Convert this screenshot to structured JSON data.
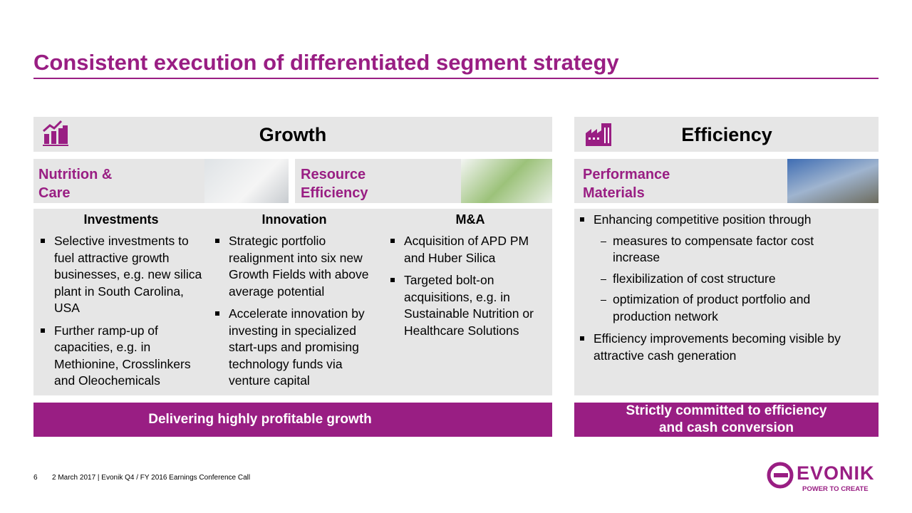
{
  "title": "Consistent execution of differentiated segment strategy",
  "growth": {
    "heading": "Growth",
    "segments": [
      "Nutrition & Care",
      "Resource Efficiency"
    ],
    "columns": [
      {
        "heading": "Investments",
        "bullets": [
          "Selective investments to fuel attractive growth businesses, e.g. new silica plant in South Carolina, USA",
          "Further ramp-up of capacities, e.g. in Methionine, Crosslinkers and Oleochemicals"
        ]
      },
      {
        "heading": "Innovation",
        "bullets": [
          "Strategic portfolio realignment into six new Growth Fields with above average potential",
          "Accelerate innovation by investing in specialized start-ups and promising technology funds via venture capital"
        ]
      },
      {
        "heading": "M&A",
        "bullets": [
          "Acquisition of APD PM and Huber Silica",
          "Targeted bolt-on acquisitions, e.g. in Sustainable Nutrition or Healthcare Solutions"
        ]
      }
    ],
    "conclusion": "Delivering highly profitable growth"
  },
  "efficiency": {
    "heading": "Efficiency",
    "segment": "Performance Materials",
    "bullets": [
      {
        "text": "Enhancing competitive position through",
        "sub": [
          "measures to compensate factor cost increase",
          "flexibilization of cost structure",
          "optimization of product portfolio and production network"
        ]
      },
      {
        "text": "Efficiency improvements becoming visible by attractive cash generation",
        "sub": []
      }
    ],
    "conclusion": "Strictly committed to efficiency and cash conversion"
  },
  "footer": {
    "page": "6",
    "text": "2 March 2017 | Evonik Q4 / FY 2016 Earnings Conference Call"
  },
  "logo": {
    "name": "EVONIK",
    "tagline": "POWER TO CREATE"
  }
}
